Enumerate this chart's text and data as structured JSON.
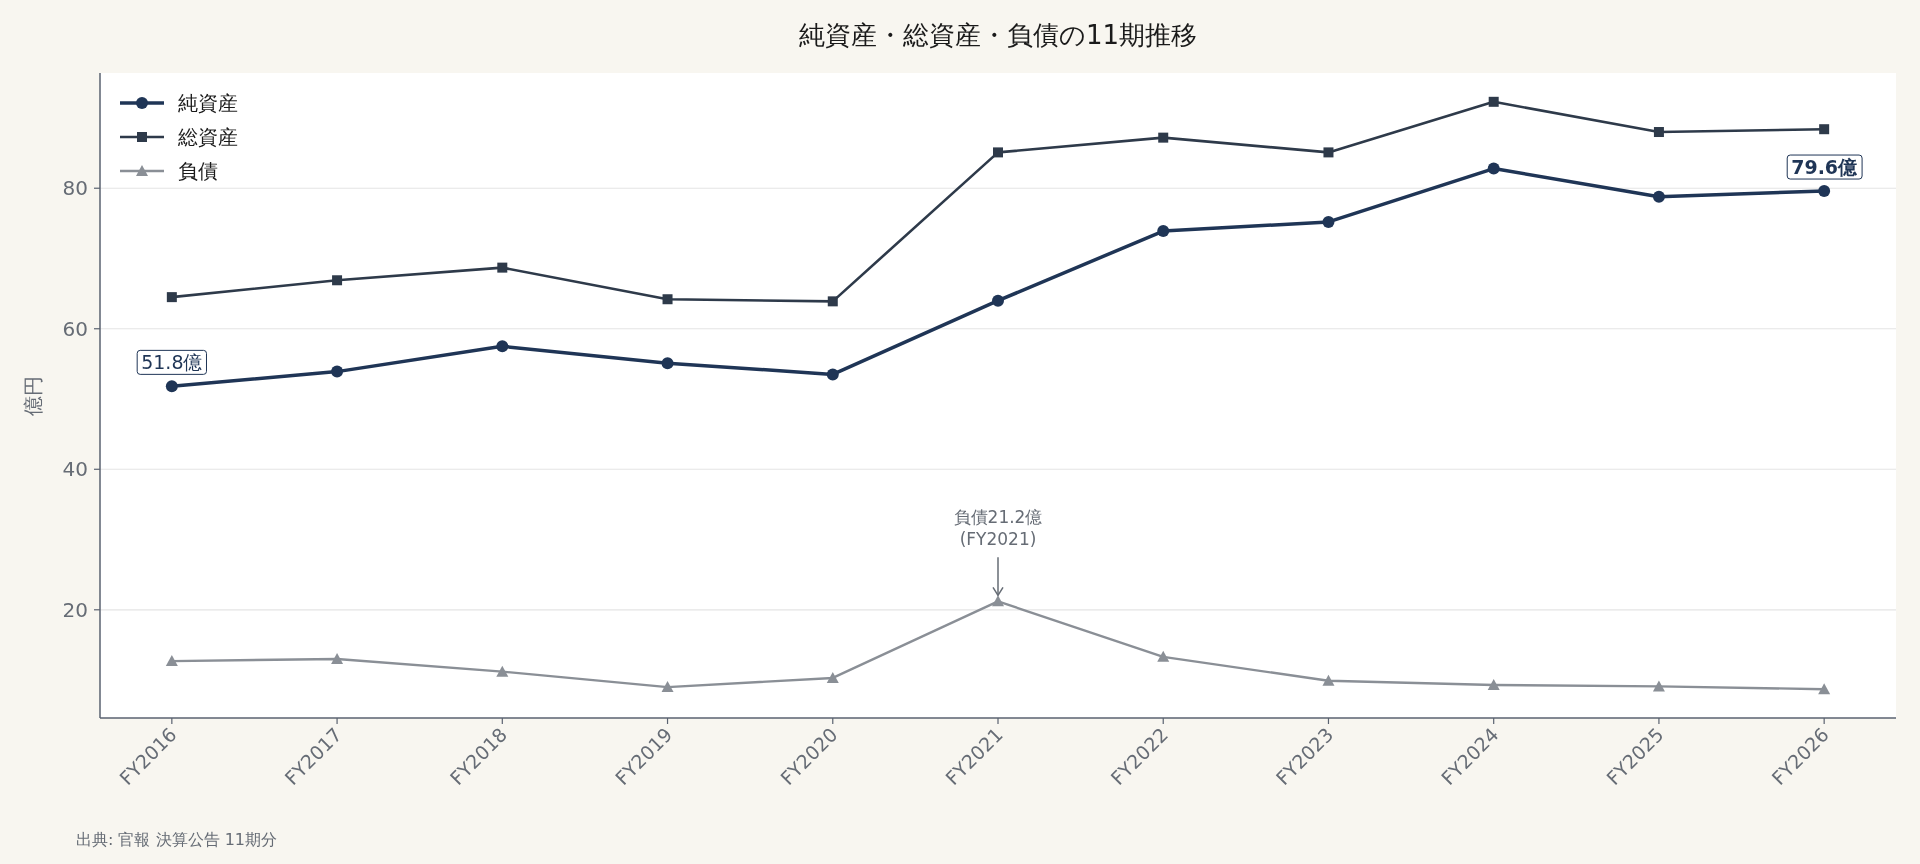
{
  "chart_data": {
    "type": "line",
    "title": "純資産・総資産・負債の11期推移",
    "ylabel": "億円",
    "categories": [
      "FY2016",
      "FY2017",
      "FY2018",
      "FY2019",
      "FY2020",
      "FY2021",
      "FY2022",
      "FY2023",
      "FY2024",
      "FY2025",
      "FY2026"
    ],
    "series": [
      {
        "name": "純資産",
        "color": "#1f3556",
        "marker": "circle",
        "values": [
          51.8,
          53.9,
          57.5,
          55.1,
          53.5,
          64.0,
          73.9,
          75.2,
          82.8,
          78.8,
          79.6
        ]
      },
      {
        "name": "総資産",
        "color": "#2e3a4a",
        "marker": "square",
        "values": [
          64.5,
          66.9,
          68.7,
          64.2,
          63.9,
          85.1,
          87.2,
          85.1,
          92.3,
          88.0,
          88.4
        ]
      },
      {
        "name": "負債",
        "color": "#8a8f96",
        "marker": "triangle",
        "values": [
          12.7,
          13.0,
          11.2,
          9.0,
          10.3,
          21.2,
          13.3,
          9.9,
          9.3,
          9.1,
          8.7
        ]
      }
    ],
    "ylim": [
      4.6,
      96.4
    ],
    "yticks": [
      20,
      40,
      60,
      80
    ],
    "grid": "y",
    "legend": "top left",
    "annotations": [
      {
        "text": "51.8億",
        "x": "FY2016",
        "y": 51.8
      },
      {
        "text": "79.6億",
        "x": "FY2026",
        "y": 79.6
      },
      {
        "text": "負債21.2億\n(FY2021)",
        "x": "FY2021",
        "y": 21.2
      },
      "出典: 官報 決算公告 11期分"
    ]
  }
}
